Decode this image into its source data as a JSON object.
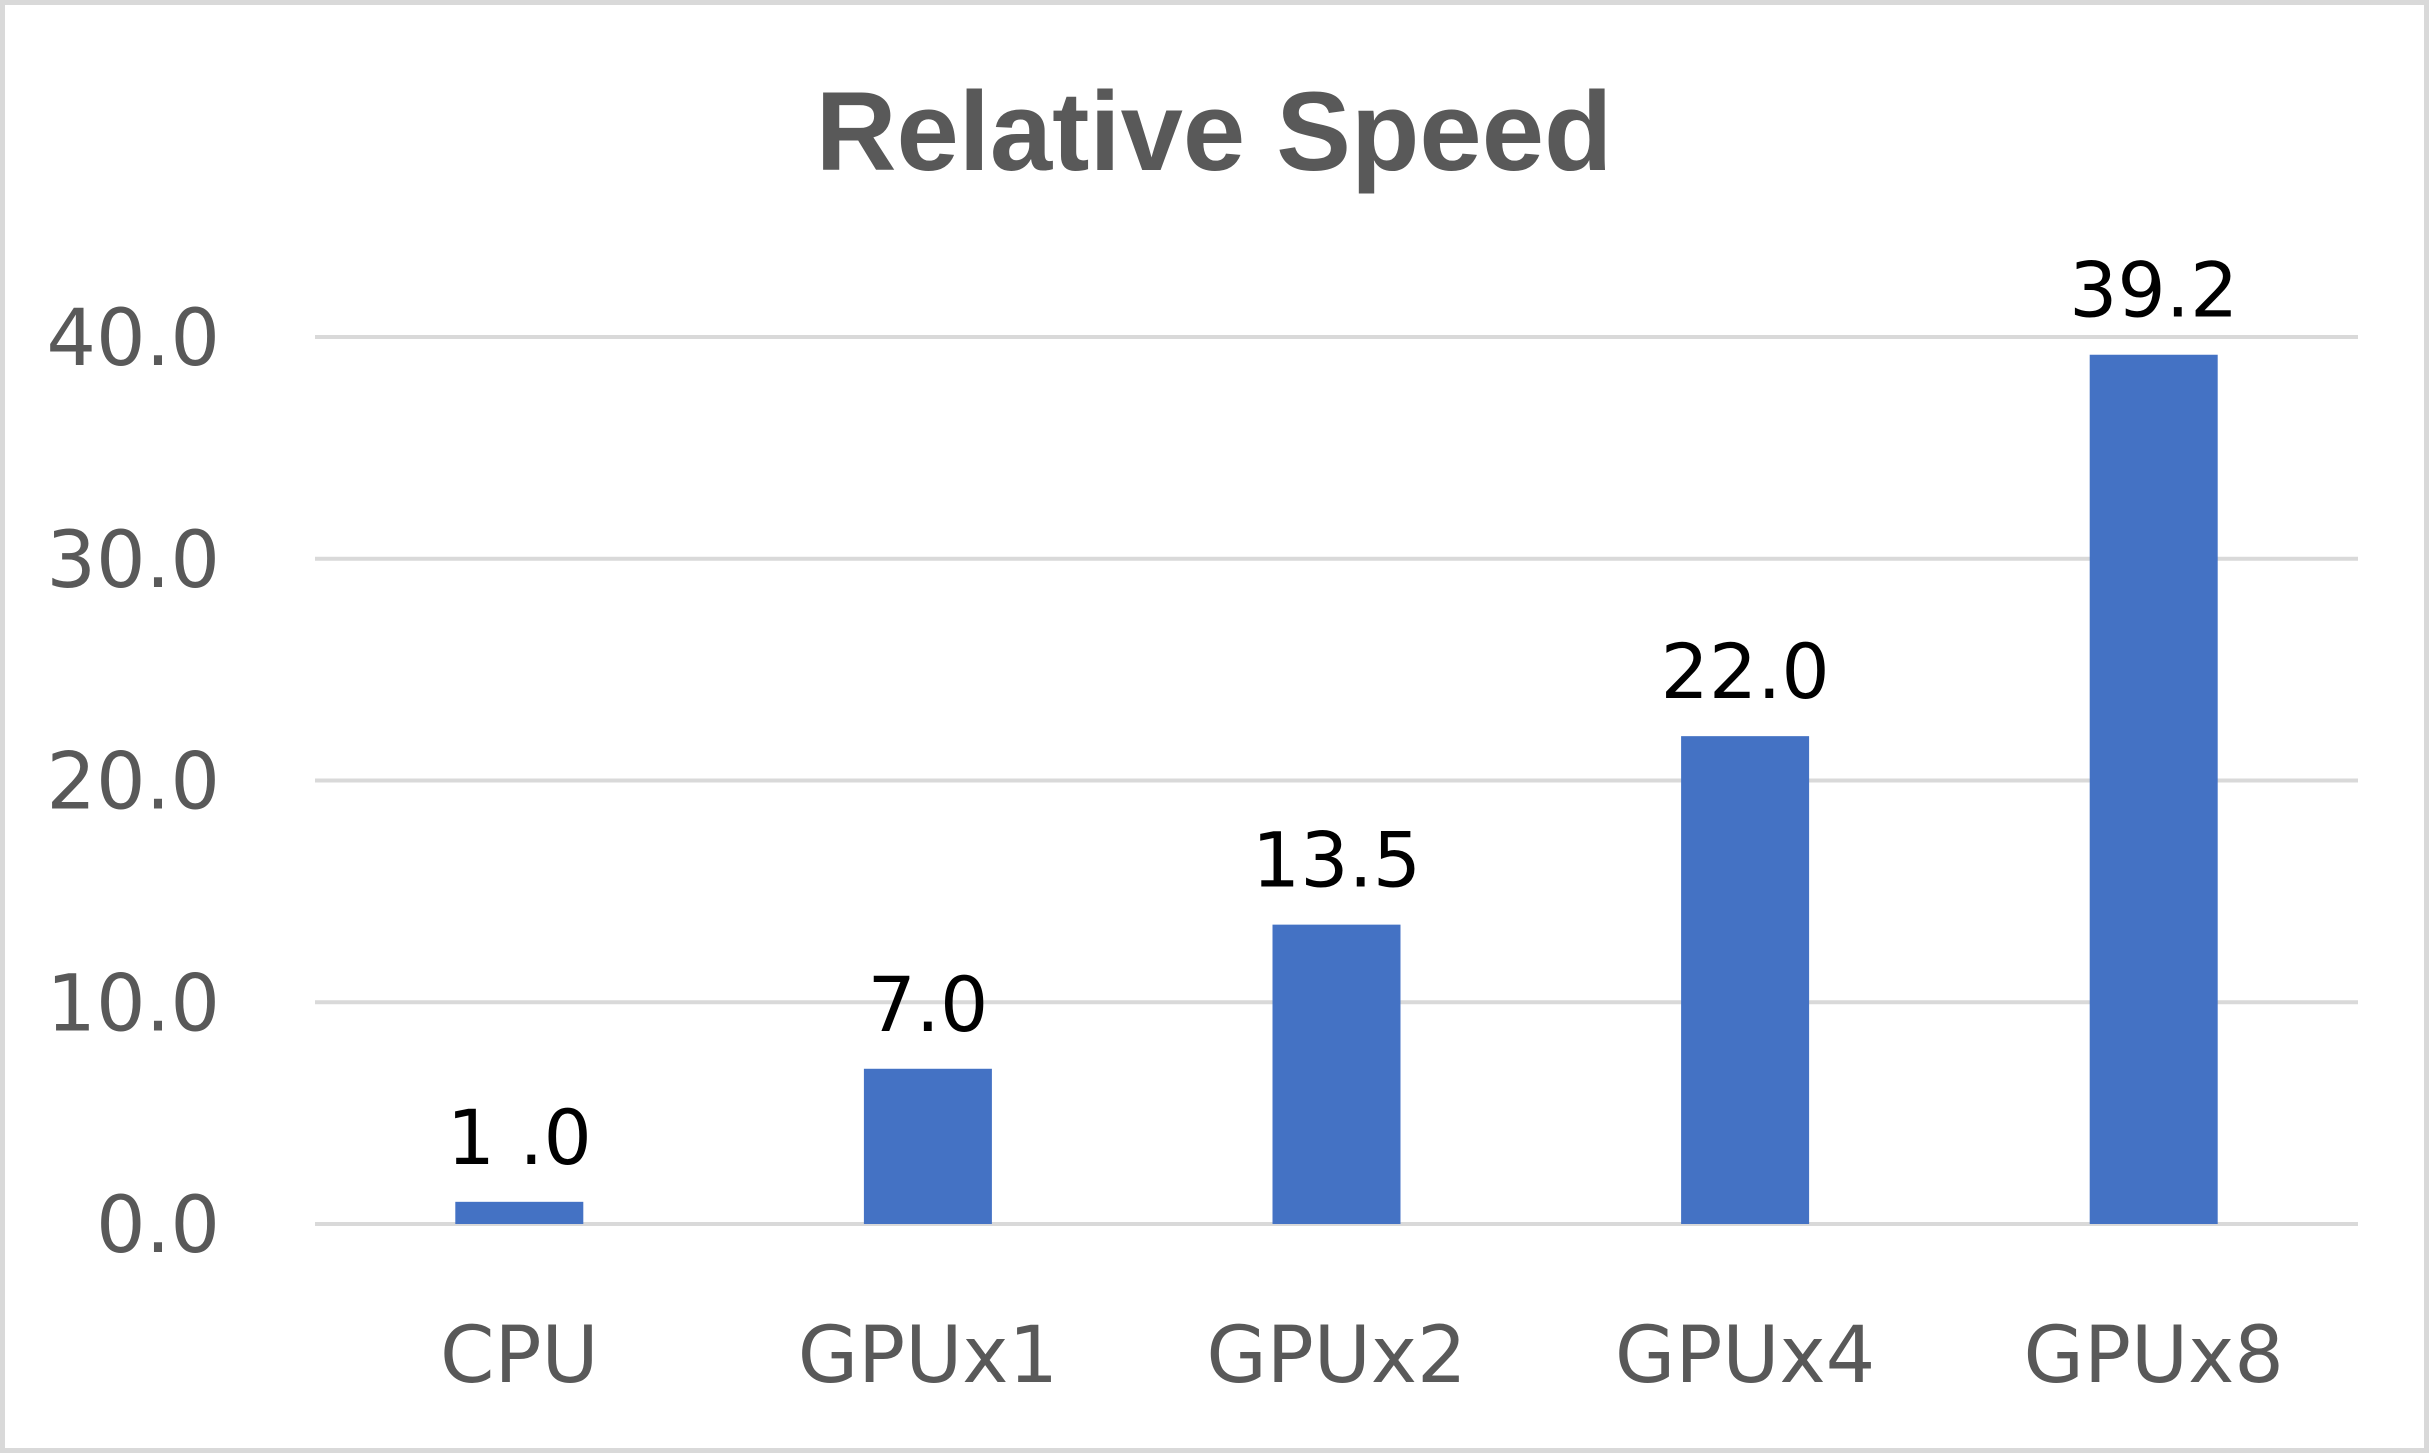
{
  "chart_data": {
    "type": "bar",
    "title": "Relative Speed",
    "xlabel": "",
    "ylabel": "",
    "categories": [
      "CPU",
      "GPUx1",
      "GPUx2",
      "GPUx4",
      "GPUx8"
    ],
    "values": [
      1.0,
      7.0,
      13.5,
      22.0,
      39.2
    ],
    "data_labels": [
      "1 .0",
      "7.0",
      "13.5",
      "22.0",
      "39.2"
    ],
    "ylim": [
      0,
      40
    ],
    "yticks": [
      0,
      10,
      20,
      30,
      40
    ],
    "ytick_labels": [
      "0.0",
      "10.0",
      "20.0",
      "30.0",
      "40.0"
    ],
    "grid": true,
    "legend": "none",
    "colors": {
      "bar": "#4472c4",
      "grid": "#d9d9d9",
      "axis_text": "#595959",
      "label_text": "#000000",
      "border": "#d9d9d9"
    }
  }
}
